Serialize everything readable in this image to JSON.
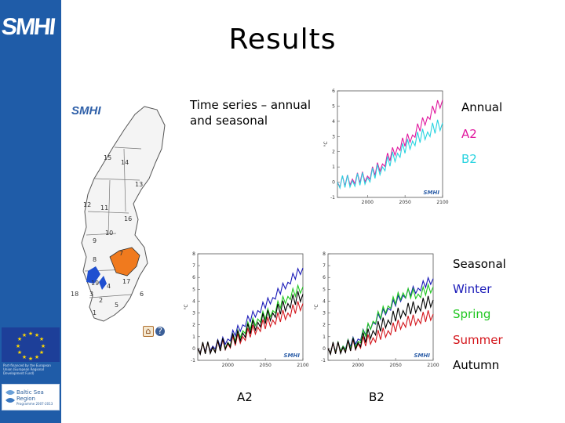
{
  "slide": {
    "title": "Results"
  },
  "sidebar": {
    "logo_text": "SMHI",
    "eu_caption": "Part-financed by the European Union (European Regional Development Fund)",
    "bsr_title": "Baltic Sea Region",
    "bsr_subtitle": "Programme 2007-2013"
  },
  "map": {
    "logo_text": "SMHI",
    "region_numbers": [
      "15",
      "14",
      "13",
      "12",
      "11",
      "16",
      "9",
      "10",
      "8",
      "7",
      "19",
      "17",
      "18",
      "3",
      "4",
      "6",
      "2",
      "1",
      "5"
    ],
    "highlight_color": "#f07a1e",
    "lake_color": "#1f4fd0",
    "help_icons": [
      "home-icon",
      "question-icon"
    ]
  },
  "annual_block": {
    "heading": "Time series – annual and seasonal",
    "legend_title": "Annual",
    "legend_items": [
      {
        "label": "A2",
        "color": "#e0189e"
      },
      {
        "label": "B2",
        "color": "#29d3e0"
      }
    ]
  },
  "seasonal_block": {
    "legend_title": "Seasonal",
    "legend_items": [
      {
        "label": "Winter",
        "color": "#1a1ab8"
      },
      {
        "label": "Spring",
        "color": "#1fc61f"
      },
      {
        "label": "Summer",
        "color": "#d4161c"
      },
      {
        "label": "Autumn",
        "color": "#000000"
      }
    ],
    "chart_captions": [
      "A2",
      "B2"
    ]
  },
  "chart_data": [
    {
      "type": "line",
      "x": [
        1960,
        1980,
        2000,
        2020,
        2040,
        2060,
        2080,
        2100
      ],
      "xticks": [
        "2000",
        "2050",
        "2100"
      ],
      "xtick_values": [
        2000,
        2050,
        2100
      ],
      "yticks": [
        "-1",
        "0",
        "1",
        "2",
        "3",
        "4",
        "5",
        "6"
      ],
      "xlabel": "",
      "ylabel": "°C",
      "xlim": [
        1960,
        2100
      ],
      "ylim": [
        -1,
        6
      ],
      "series": [
        {
          "color": "#e0189e",
          "values": [
            0.0,
            0.2,
            0.4,
            1.2,
            2.3,
            3.1,
            4.3,
            5.4
          ]
        },
        {
          "color": "#29d3e0",
          "values": [
            0.0,
            0.1,
            0.3,
            1.0,
            1.9,
            2.7,
            3.3,
            3.9
          ]
        }
      ],
      "watermark": "SMHI"
    },
    {
      "type": "line",
      "x": [
        1960,
        1980,
        2000,
        2020,
        2040,
        2060,
        2080,
        2100
      ],
      "xticks": [
        "2000",
        "2050",
        "2100"
      ],
      "xtick_values": [
        2000,
        2050,
        2100
      ],
      "yticks": [
        "-1",
        "0",
        "1",
        "2",
        "3",
        "4",
        "5",
        "6",
        "7",
        "8"
      ],
      "xlabel": "",
      "ylabel": "°C",
      "xlim": [
        1960,
        2100
      ],
      "ylim": [
        -1,
        8
      ],
      "series": [
        {
          "color": "#1a1ab8",
          "values": [
            0.0,
            0.2,
            0.8,
            2.0,
            3.2,
            4.3,
            5.6,
            6.8
          ]
        },
        {
          "color": "#1fc61f",
          "values": [
            0.0,
            0.1,
            0.5,
            1.5,
            2.5,
            3.2,
            4.4,
            5.2
          ]
        },
        {
          "color": "#d4161c",
          "values": [
            0.0,
            0.1,
            0.4,
            1.0,
            1.8,
            2.4,
            3.0,
            3.8
          ]
        },
        {
          "color": "#000000",
          "values": [
            0.0,
            0.1,
            0.5,
            1.3,
            2.2,
            3.0,
            3.8,
            4.6
          ]
        }
      ],
      "watermark": "SMHI"
    },
    {
      "type": "line",
      "x": [
        1960,
        1980,
        2000,
        2020,
        2040,
        2060,
        2080,
        2100
      ],
      "xticks": [
        "2000",
        "2050",
        "2100"
      ],
      "xtick_values": [
        2000,
        2050,
        2100
      ],
      "yticks": [
        "-1",
        "0",
        "1",
        "2",
        "3",
        "4",
        "5",
        "6",
        "7",
        "8"
      ],
      "xlabel": "",
      "ylabel": "°C",
      "xlim": [
        1960,
        2100
      ],
      "ylim": [
        -1,
        8
      ],
      "series": [
        {
          "color": "#1a1ab8",
          "values": [
            0.0,
            0.2,
            0.8,
            2.2,
            3.4,
            4.5,
            5.1,
            5.9
          ]
        },
        {
          "color": "#1fc61f",
          "values": [
            0.0,
            0.2,
            0.6,
            2.3,
            3.6,
            4.7,
            4.6,
            5.2
          ]
        },
        {
          "color": "#d4161c",
          "values": [
            0.0,
            0.1,
            0.4,
            0.9,
            1.5,
            2.2,
            2.5,
            2.9
          ]
        },
        {
          "color": "#000000",
          "values": [
            0.0,
            0.1,
            0.5,
            1.5,
            2.4,
            3.2,
            3.6,
            4.1
          ]
        }
      ],
      "watermark": "SMHI"
    }
  ]
}
